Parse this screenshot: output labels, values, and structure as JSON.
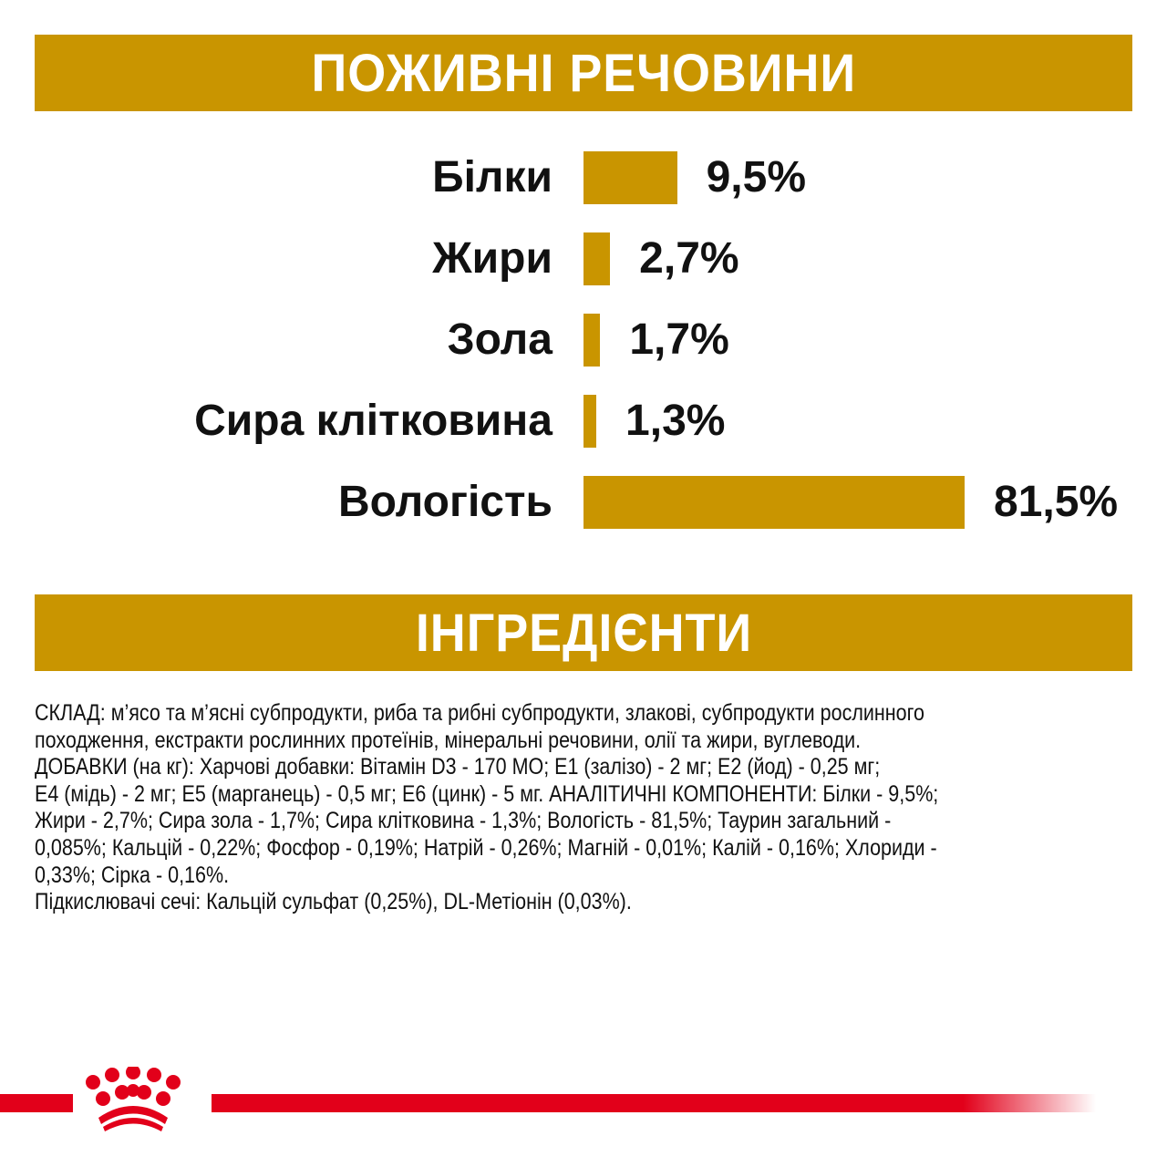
{
  "nutrients_header": "ПОЖИВНІ РЕЧОВИНИ",
  "chart_data": {
    "type": "bar",
    "orientation": "horizontal",
    "categories": [
      "Білки",
      "Жири",
      "Зола",
      "Сира клітковина",
      "Вологість"
    ],
    "values": [
      9.5,
      2.7,
      1.7,
      1.3,
      81.5
    ],
    "value_labels": [
      "9,5%",
      "2,7%",
      "1,7%",
      "1,3%",
      "81,5%"
    ],
    "unit": "%",
    "bar_color": "#C99500"
  },
  "ingredients_header": "ІНГРЕДІЄНТИ",
  "ingredients_lines": [
    "СКЛАД: м’ясо та м’ясні субпродукти, риба та рибні субпродукти, злакові, субпродукти рослинного",
    "походження, екстракти рослинних протеїнів, мінеральні речовини, олії та жири, вуглеводи.",
    "ДОБАВКИ (на кг): Харчові добавки: Вітамін D3 - 170 МО; Е1 (залізо) - 2 мг; Е2 (йод) - 0,25 мг;",
    "Е4 (мідь) - 2 мг; Е5 (марганець) - 0,5 мг; Е6 (цинк) - 5 мг. АНАЛІТИЧНІ КОМПОНЕНТИ: Білки - 9,5%;",
    "Жири - 2,7%; Сира зола - 1,7%; Сира клітковина - 1,3%; Вологість - 81,5%; Таурин загальний -",
    "0,085%; Кальцій - 0,22%; Фосфор - 0,19%; Натрій - 0,26%; Магній - 0,01%; Калій - 0,16%; Хлориди -",
    "0,33%; Сірка - 0,16%.",
    "Підкислювачі сечі: Кальцій сульфат (0,25%), DL-Метіонін (0,03%)."
  ],
  "colors": {
    "gold": "#C99500",
    "brand_red": "#E2001A"
  },
  "logo": "royal-canin-crown"
}
